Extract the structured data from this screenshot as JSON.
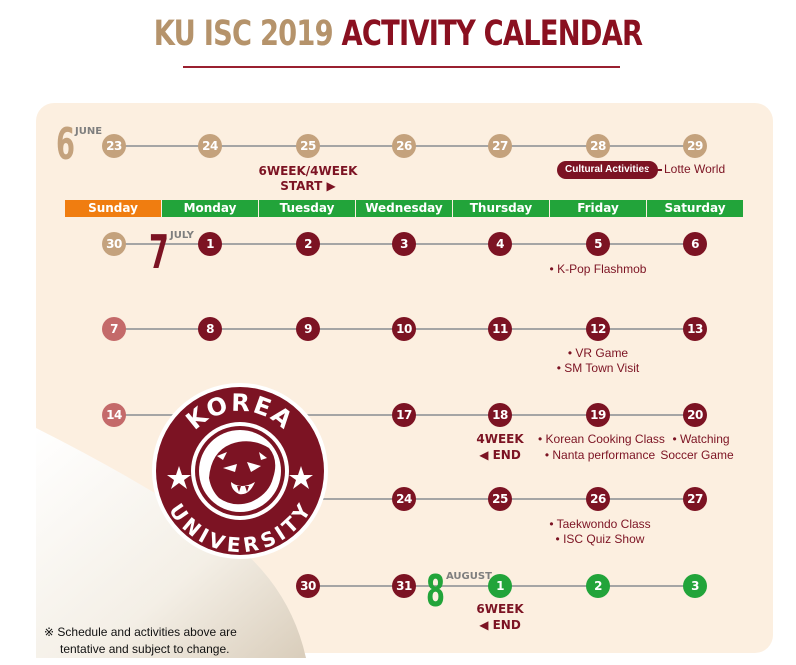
{
  "title": {
    "part1": "KU ISC 2019",
    "part2": "ACTIVITY CALENDAR"
  },
  "months": {
    "june": {
      "num": "6",
      "label": "JUNE"
    },
    "july": {
      "num": "7",
      "label": "JULY"
    },
    "august": {
      "num": "8",
      "label": "AUGUST"
    }
  },
  "weekdays": [
    "Sunday",
    "Monday",
    "Tuesday",
    "Wednesday",
    "Thursday",
    "Friday",
    "Saturday"
  ],
  "week1": [
    "23",
    "24",
    "25",
    "26",
    "27",
    "28",
    "29"
  ],
  "week2": [
    "30",
    "1",
    "2",
    "3",
    "4",
    "5",
    "6"
  ],
  "week3": [
    "7",
    "8",
    "9",
    "10",
    "11",
    "12",
    "13"
  ],
  "week4": [
    "14",
    "17",
    "18",
    "19",
    "20"
  ],
  "week5": [
    "24",
    "25",
    "26",
    "27"
  ],
  "week6": [
    "30",
    "31",
    "1",
    "2",
    "3"
  ],
  "events": {
    "start_line1": "6WEEK/4WEEK",
    "start_line2": "START ▶",
    "cultural": "Cultural Activities",
    "lotte": "Lotte World",
    "kpop": "• K-Pop Flashmob",
    "vr": "• VR Game",
    "smtown": "• SM Town Visit",
    "end4_line1": "4WEEK",
    "end4_line2": "◀ END",
    "cooking": "• Korean Cooking Class",
    "nanta": "• Nanta performance",
    "watching1": "• Watching",
    "watching2": "Soccer Game",
    "taekwondo": "• Taekwondo Class",
    "quiz": "• ISC Quiz Show",
    "end6_line1": "6WEEK",
    "end6_line2": "◀ END"
  },
  "logo": {
    "top": "KOREA",
    "bottom": "UNIVERSITY"
  },
  "disclaimer": {
    "line1": "※ Schedule and activities above are",
    "line2": "tentative and subject to change."
  },
  "colors": {
    "maroon": "#7c1323",
    "tan": "#c4a27d",
    "green": "#22a43a",
    "orange": "#f07d10",
    "panel": "#fcefe0"
  }
}
